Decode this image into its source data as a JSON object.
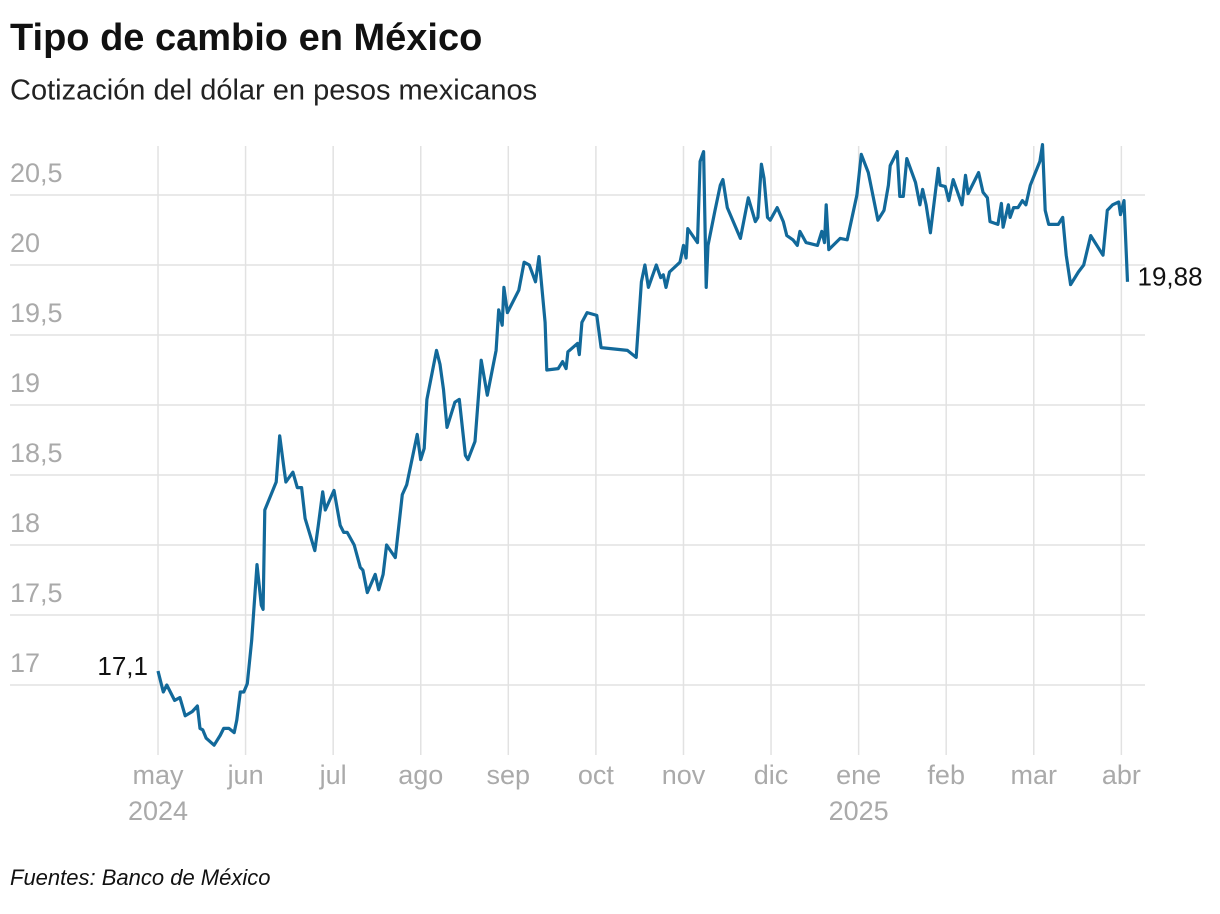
{
  "chart_data": {
    "type": "line",
    "title": "Tipo de cambio en México",
    "subtitle": "Cotización del dólar en pesos mexicanos",
    "source": "Fuentes: Banco de México",
    "x": [
      0,
      0.06,
      0.1,
      0.19,
      0.25,
      0.31,
      0.39,
      0.45,
      0.48,
      0.51,
      0.55,
      0.64,
      0.71,
      0.75,
      0.81,
      0.87,
      0.9,
      0.94,
      0.98,
      1.02,
      1.07,
      1.13,
      1.18,
      1.2,
      1.22,
      1.35,
      1.39,
      1.44,
      1.46,
      1.54,
      1.59,
      1.64,
      1.68,
      1.79,
      1.83,
      1.88,
      1.91,
      2.01,
      2.08,
      2.12,
      2.16,
      2.24,
      2.31,
      2.34,
      2.39,
      2.48,
      2.52,
      2.57,
      2.61,
      2.71,
      2.79,
      2.84,
      2.96,
      3.0,
      3.04,
      3.07,
      3.18,
      3.22,
      3.26,
      3.3,
      3.39,
      3.44,
      3.51,
      3.54,
      3.62,
      3.69,
      3.76,
      3.86,
      3.89,
      3.93,
      3.95,
      3.99,
      4.12,
      4.18,
      4.24,
      4.31,
      4.35,
      4.42,
      4.44,
      4.57,
      4.62,
      4.66,
      4.68,
      4.79,
      4.81,
      4.84,
      4.9,
      5.01,
      5.06,
      5.36,
      5.46,
      5.52,
      5.56,
      5.6,
      5.69,
      5.74,
      5.77,
      5.8,
      5.84,
      5.96,
      6.0,
      6.03,
      6.05,
      6.16,
      6.19,
      6.23,
      6.26,
      6.28,
      6.36,
      6.42,
      6.45,
      6.5,
      6.65,
      6.74,
      6.82,
      6.85,
      6.89,
      6.92,
      6.96,
      6.99,
      7.07,
      7.14,
      7.18,
      7.25,
      7.3,
      7.33,
      7.4,
      7.53,
      7.58,
      7.61,
      7.63,
      7.66,
      7.79,
      7.87,
      7.98,
      8.03,
      8.11,
      8.22,
      8.29,
      8.34,
      8.36,
      8.44,
      8.47,
      8.51,
      8.55,
      8.65,
      8.7,
      8.73,
      8.77,
      8.82,
      8.91,
      8.93,
      8.99,
      9.03,
      9.08,
      9.18,
      9.22,
      9.25,
      9.37,
      9.42,
      9.47,
      9.5,
      9.59,
      9.63,
      9.65,
      9.71,
      9.73,
      9.77,
      9.82,
      9.87,
      9.91,
      9.96,
      10.07,
      10.1,
      10.13,
      10.17,
      10.28,
      10.33,
      10.37,
      10.42,
      10.51,
      10.57,
      10.65,
      10.74,
      10.79,
      10.84,
      10.9,
      10.97,
      10.99,
      11.03,
      11.07
    ],
    "series": [
      {
        "name": "Tipo de cambio",
        "color": "#12699a",
        "values": [
          17.1,
          16.95,
          17.0,
          16.89,
          16.91,
          16.78,
          16.81,
          16.85,
          16.69,
          16.68,
          16.62,
          16.57,
          16.64,
          16.69,
          16.69,
          16.66,
          16.75,
          16.95,
          16.95,
          17.01,
          17.32,
          17.86,
          17.57,
          17.54,
          18.25,
          18.45,
          18.78,
          18.54,
          18.45,
          18.52,
          18.41,
          18.41,
          18.19,
          17.96,
          18.14,
          18.38,
          18.25,
          18.39,
          18.14,
          18.09,
          18.09,
          18.0,
          17.84,
          17.82,
          17.66,
          17.79,
          17.68,
          17.79,
          18.0,
          17.91,
          18.36,
          18.43,
          18.79,
          18.61,
          18.69,
          19.04,
          19.39,
          19.29,
          19.11,
          18.84,
          19.02,
          19.04,
          18.64,
          18.61,
          18.74,
          19.32,
          19.07,
          19.39,
          19.68,
          19.57,
          19.84,
          19.66,
          19.82,
          20.02,
          20.0,
          19.88,
          20.06,
          19.59,
          19.25,
          19.26,
          19.31,
          19.26,
          19.38,
          19.44,
          19.36,
          19.59,
          19.66,
          19.64,
          19.41,
          19.39,
          19.34,
          19.88,
          20.0,
          19.84,
          20.0,
          19.91,
          19.93,
          19.84,
          19.95,
          20.02,
          20.14,
          20.05,
          20.26,
          20.16,
          20.74,
          20.81,
          19.84,
          20.14,
          20.39,
          20.57,
          20.61,
          20.41,
          20.19,
          20.48,
          20.31,
          20.34,
          20.72,
          20.62,
          20.34,
          20.32,
          20.41,
          20.31,
          20.21,
          20.18,
          20.14,
          20.24,
          20.16,
          20.14,
          20.24,
          20.16,
          20.43,
          20.11,
          20.19,
          20.18,
          20.5,
          20.79,
          20.66,
          20.32,
          20.39,
          20.57,
          20.71,
          20.81,
          20.49,
          20.49,
          20.76,
          20.59,
          20.43,
          20.54,
          20.43,
          20.23,
          20.69,
          20.57,
          20.56,
          20.46,
          20.61,
          20.43,
          20.64,
          20.51,
          20.66,
          20.52,
          20.48,
          20.31,
          20.29,
          20.44,
          20.27,
          20.43,
          20.34,
          20.41,
          20.41,
          20.46,
          20.43,
          20.57,
          20.74,
          20.86,
          20.39,
          20.29,
          20.29,
          20.34,
          20.07,
          19.86,
          19.95,
          20.0,
          20.21,
          20.12,
          20.07,
          20.39,
          20.43,
          20.45,
          20.36,
          20.46,
          19.88
        ]
      }
    ],
    "start_label": "17,1",
    "end_label": "19,88",
    "xlim": [
      -1.69,
      11.27
    ],
    "xticks": [
      {
        "value": 0,
        "label": "may"
      },
      {
        "value": 1,
        "label": "jun"
      },
      {
        "value": 2,
        "label": "jul"
      },
      {
        "value": 3,
        "label": "ago"
      },
      {
        "value": 4,
        "label": "sep"
      },
      {
        "value": 5,
        "label": "oct"
      },
      {
        "value": 6,
        "label": "nov"
      },
      {
        "value": 7,
        "label": "dic"
      },
      {
        "value": 8,
        "label": "ene"
      },
      {
        "value": 9,
        "label": "feb"
      },
      {
        "value": 10,
        "label": "mar"
      },
      {
        "value": 11,
        "label": "abr"
      }
    ],
    "x_group_labels": [
      {
        "value": 0,
        "label": "2024"
      },
      {
        "value": 8,
        "label": "2025"
      }
    ],
    "ylim": [
      16.5,
      20.85
    ],
    "yticks": [
      17,
      {
        "value": 17.5,
        "label": "17,5"
      },
      18,
      {
        "value": 18.5,
        "label": "18,5"
      },
      19,
      {
        "value": 19.5,
        "label": "19,5"
      },
      20,
      {
        "value": 20.5,
        "label": "20,5"
      }
    ],
    "grid": true
  }
}
